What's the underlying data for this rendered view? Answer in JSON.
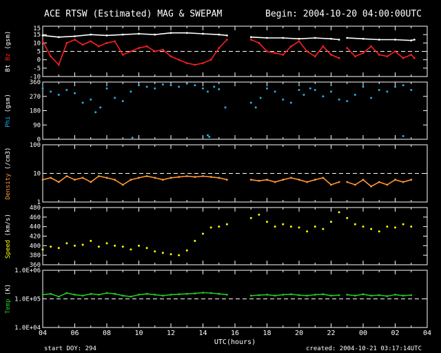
{
  "title": "ACE RTSW (Estimated) MAG & SWEPAM",
  "begin": "Begin: 2004-10-20 04:00:00UTC",
  "footer": {
    "start_doy": "start DOY: 294",
    "created": "created: 2004-10-21 03:17:14UTC",
    "xlabel": "UTC(hours)"
  },
  "x_ticks": [
    "04",
    "06",
    "08",
    "10",
    "12",
    "14",
    "16",
    "18",
    "20",
    "22",
    "00",
    "02",
    "04"
  ],
  "data_gaps": [
    [
      15.6,
      16.9
    ],
    [
      22.6,
      22.9
    ]
  ],
  "chart_data": [
    {
      "type": "line",
      "name": "mag",
      "ylabel_parts": [
        {
          "text": "Bt",
          "color": "#ffffff"
        },
        {
          "text": "Bz",
          "color": "#ff2020"
        },
        {
          "text": "(gsm)",
          "color": "#ffffff"
        }
      ],
      "ylim": [
        -15,
        15
      ],
      "yticks": [
        10,
        5,
        0,
        -5,
        -10,
        -15
      ],
      "yticks_major": [
        "15",
        "10",
        "5",
        "0",
        "-5",
        "-10",
        "-15"
      ],
      "ref_lines": [
        0
      ],
      "series": [
        {
          "name": "Bt",
          "color": "#ffffff",
          "style": "line",
          "x": [
            4,
            5,
            6,
            7,
            8,
            9,
            10,
            11,
            12,
            13,
            14,
            15,
            15.5,
            17,
            18,
            19,
            20,
            21,
            22,
            22.5,
            23,
            24,
            25,
            26,
            27,
            27.2
          ],
          "y": [
            9.5,
            8.5,
            9,
            10,
            9.5,
            10,
            10.5,
            10,
            11,
            11,
            10.5,
            10,
            9.5,
            8.5,
            8,
            8,
            7.5,
            8,
            7.5,
            7,
            8,
            7.5,
            7,
            7,
            6.5,
            7
          ]
        },
        {
          "name": "Bz",
          "color": "#ff2020",
          "style": "line",
          "x": [
            4,
            4.5,
            5,
            5.5,
            6,
            6.5,
            7,
            7.5,
            8,
            8.5,
            9,
            9.5,
            10,
            10.5,
            11,
            11.5,
            12,
            12.5,
            13,
            13.5,
            14,
            14.5,
            15,
            15.5,
            17,
            17.5,
            18,
            18.5,
            19,
            19.5,
            20,
            20.5,
            21,
            21.5,
            22,
            22.5,
            23,
            23.5,
            24,
            24.5,
            25,
            25.5,
            26,
            26.5,
            27,
            27.2
          ],
          "y": [
            6,
            -3,
            -8,
            5,
            7,
            4,
            6,
            3,
            5,
            6,
            -2,
            0,
            2,
            3,
            0,
            1,
            -3,
            -5,
            -7,
            -8,
            -7,
            -5,
            2,
            7,
            7,
            5,
            0,
            -1,
            -2,
            3,
            6,
            0,
            -3,
            3,
            -2,
            -4,
            2,
            -3,
            -1,
            3,
            -2,
            -3,
            0,
            -4,
            -2,
            -4
          ]
        }
      ]
    },
    {
      "type": "scatter",
      "name": "phi",
      "ylabel_parts": [
        {
          "text": "Phi",
          "color": "#1fb0e6"
        },
        {
          "text": "(gsm)",
          "color": "#ffffff"
        }
      ],
      "ylim": [
        0,
        360
      ],
      "yticks": [
        360,
        270,
        180,
        90,
        0
      ],
      "yticks_major": [
        "360",
        "270",
        "180",
        "90",
        "0"
      ],
      "ref_lines": [],
      "series": [
        {
          "name": "Phi",
          "color": "#1fb0e6",
          "style": "scatter",
          "x": [
            4,
            4.5,
            5,
            5.5,
            6,
            6.5,
            7,
            7.3,
            7.6,
            8,
            8.5,
            9,
            9.5,
            10,
            10.5,
            11,
            11.5,
            12,
            12.5,
            13,
            13.5,
            14,
            14.3,
            14.7,
            15,
            15.4,
            17,
            17.3,
            17.6,
            18,
            18.5,
            19,
            19.5,
            20,
            20.3,
            20.7,
            21,
            21.5,
            22,
            22.5,
            23,
            23.5,
            24,
            24.5,
            25,
            25.5,
            26,
            26.5,
            27
          ],
          "y": [
            320,
            300,
            280,
            310,
            290,
            230,
            250,
            170,
            200,
            320,
            260,
            240,
            300,
            340,
            330,
            320,
            345,
            340,
            330,
            350,
            340,
            320,
            300,
            330,
            315,
            200,
            230,
            200,
            260,
            320,
            300,
            250,
            230,
            310,
            280,
            320,
            310,
            270,
            300,
            250,
            240,
            280,
            330,
            260,
            310,
            300,
            330,
            340,
            310
          ]
        },
        {
          "name": "Phi-low",
          "color": "#1fb0e6",
          "style": "scatter",
          "x": [
            9.6,
            14.3,
            14.4,
            26.5
          ],
          "y": [
            10,
            25,
            15,
            20
          ]
        }
      ]
    },
    {
      "type": "line",
      "name": "density",
      "ylabel_parts": [
        {
          "text": "Density",
          "color": "#ff9933"
        },
        {
          "text": "(/cm3)",
          "color": "#ffffff"
        }
      ],
      "yscale": "log",
      "ylim": [
        1,
        100
      ],
      "yticks": [
        100,
        10,
        1
      ],
      "yticks_major": [
        "100",
        "10",
        "1"
      ],
      "ref_lines": [
        10
      ],
      "series": [
        {
          "name": "Density",
          "color": "#ff9933",
          "style": "line",
          "x": [
            4,
            4.5,
            5,
            5.5,
            6,
            6.5,
            7,
            7.5,
            8,
            8.5,
            9,
            9.5,
            10,
            10.5,
            11,
            11.5,
            12,
            12.5,
            13,
            13.5,
            14,
            14.5,
            15,
            15.5,
            17,
            17.5,
            18,
            18.5,
            19,
            19.5,
            20,
            20.5,
            21,
            21.5,
            22,
            22.5,
            23,
            23.5,
            24,
            24.5,
            25,
            25.5,
            26,
            26.5,
            27
          ],
          "y": [
            6,
            7,
            5,
            8,
            6,
            7,
            5,
            8,
            7,
            6,
            4,
            6,
            7,
            8,
            7,
            6,
            7,
            7.5,
            8,
            7.5,
            8,
            7.5,
            7,
            6,
            6,
            5.5,
            6,
            5,
            6,
            7,
            6,
            5,
            6,
            7,
            4,
            5,
            5,
            4,
            6,
            3.5,
            5,
            4,
            6,
            5,
            6
          ]
        }
      ]
    },
    {
      "type": "scatter",
      "name": "speed",
      "ylabel_parts": [
        {
          "text": "Speed",
          "color": "#ffff00"
        },
        {
          "text": "(km/s)",
          "color": "#ffffff"
        }
      ],
      "ylim": [
        360,
        480
      ],
      "yticks": [
        480,
        460,
        440,
        420,
        400,
        380,
        360
      ],
      "yticks_major": [
        "480",
        "460",
        "440",
        "420",
        "400",
        "380",
        "360"
      ],
      "ref_lines": [],
      "series": [
        {
          "name": "Speed",
          "color": "#ffff00",
          "style": "scatter",
          "x": [
            4,
            4.5,
            5,
            5.5,
            6,
            6.5,
            7,
            7.5,
            8,
            8.5,
            9,
            9.5,
            10,
            10.5,
            11,
            11.5,
            12,
            12.5,
            13,
            13.5,
            14,
            14.5,
            15,
            15.5,
            17,
            17.5,
            18,
            18.5,
            19,
            19.5,
            20,
            20.5,
            21,
            21.5,
            22,
            22.5,
            23,
            23.5,
            24,
            24.5,
            25,
            25.5,
            26,
            26.5,
            27
          ],
          "y": [
            392,
            398,
            395,
            405,
            400,
            402,
            410,
            398,
            405,
            400,
            398,
            392,
            400,
            395,
            388,
            385,
            382,
            380,
            390,
            410,
            425,
            438,
            440,
            445,
            458,
            465,
            450,
            440,
            445,
            440,
            438,
            430,
            440,
            435,
            450,
            470,
            458,
            445,
            440,
            435,
            430,
            440,
            438,
            445,
            440
          ]
        }
      ]
    },
    {
      "type": "line",
      "name": "temp",
      "ylabel_parts": [
        {
          "text": "Temp",
          "color": "#22cc22"
        },
        {
          "text": "(K)",
          "color": "#ffffff"
        }
      ],
      "yscale": "log",
      "ylim": [
        10000,
        1000000
      ],
      "yticks": [
        1000000,
        100000,
        10000
      ],
      "yticks_major": [
        "1.0E+06",
        "1.0E+05",
        "1.0E+04"
      ],
      "ref_lines": [
        100000
      ],
      "series": [
        {
          "name": "Temp",
          "color": "#22cc22",
          "style": "line",
          "x": [
            4,
            4.5,
            5,
            5.5,
            6,
            6.5,
            7,
            7.5,
            8,
            8.5,
            9,
            9.5,
            10,
            10.5,
            11,
            11.5,
            12,
            12.5,
            13,
            13.5,
            14,
            14.5,
            15,
            15.5,
            17,
            17.5,
            18,
            18.5,
            19,
            19.5,
            20,
            20.5,
            21,
            21.5,
            22,
            22.5,
            23,
            23.5,
            24,
            24.5,
            25,
            25.5,
            26,
            26.5,
            27
          ],
          "y": [
            140000,
            150000,
            120000,
            160000,
            140000,
            130000,
            150000,
            140000,
            160000,
            150000,
            130000,
            120000,
            140000,
            150000,
            140000,
            130000,
            140000,
            145000,
            150000,
            155000,
            165000,
            160000,
            150000,
            140000,
            130000,
            135000,
            140000,
            130000,
            140000,
            145000,
            135000,
            130000,
            140000,
            145000,
            130000,
            135000,
            140000,
            130000,
            145000,
            130000,
            135000,
            125000,
            140000,
            130000,
            135000
          ]
        }
      ]
    }
  ]
}
